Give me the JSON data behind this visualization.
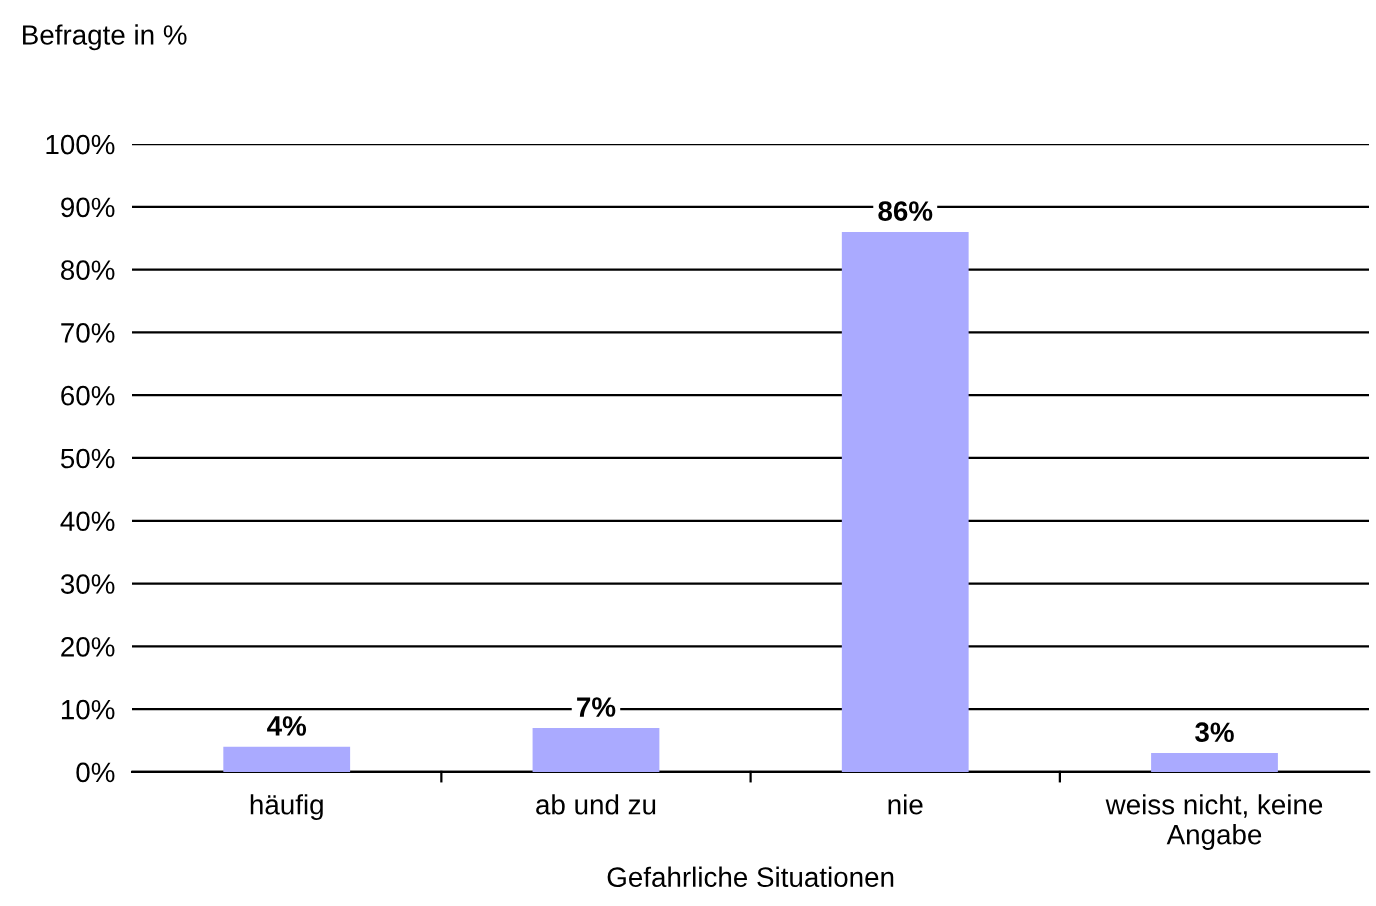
{
  "chart_data": {
    "type": "bar",
    "ylabel": "Befragte in %",
    "xlabel": "Gefahrliche Situationen",
    "categories": [
      "häufig",
      "ab und zu",
      "nie",
      "weiss nicht, keine\nAngabe"
    ],
    "values": [
      4,
      7,
      86,
      3
    ],
    "color": "#aaaaff",
    "value_labels": [
      "4%",
      "7%",
      "86%",
      "3%"
    ],
    "ylim": [
      0,
      100
    ],
    "yticks": [
      {
        "value": 0,
        "label": "0%"
      },
      {
        "value": 10,
        "label": "10%"
      },
      {
        "value": 20,
        "label": "20%"
      },
      {
        "value": 30,
        "label": "30%"
      },
      {
        "value": 40,
        "label": "40%"
      },
      {
        "value": 50,
        "label": "50%"
      },
      {
        "value": 60,
        "label": "60%"
      },
      {
        "value": 70,
        "label": "70%"
      },
      {
        "value": 80,
        "label": "80%"
      },
      {
        "value": 90,
        "label": "90%"
      },
      {
        "value": 100,
        "label": "100%"
      }
    ],
    "grid": "y"
  }
}
